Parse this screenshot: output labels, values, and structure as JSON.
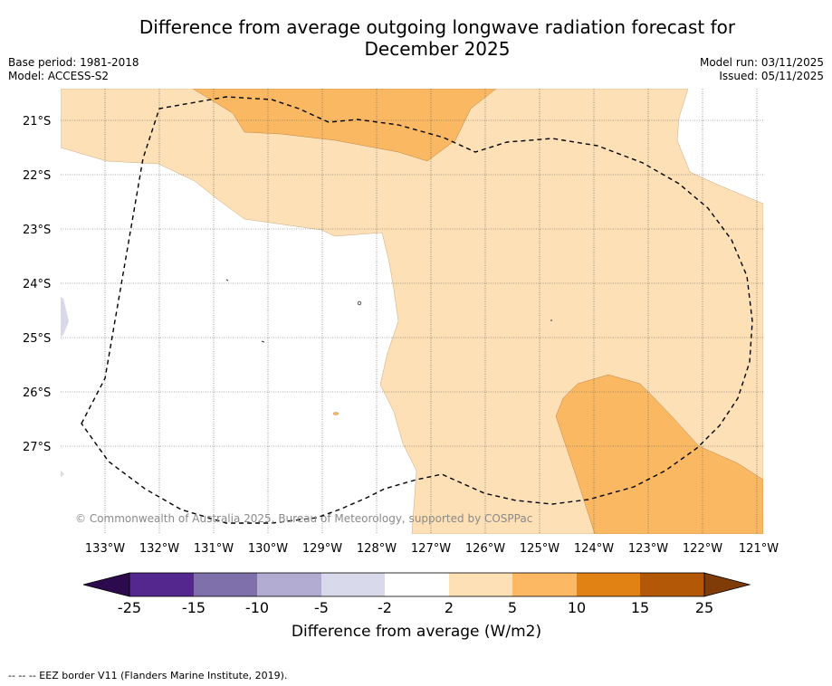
{
  "header": {
    "title_line1": "Difference from average outgoing longwave radiation forecast for",
    "title_line2": "December 2025",
    "base_period": "Base period: 1981-2018",
    "model": "Model: ACCESS-S2",
    "model_run": "Model run: 03/11/2025",
    "issued": "Issued: 05/11/2025"
  },
  "map": {
    "lat_labels": [
      "21°S",
      "22°S",
      "23°S",
      "24°S",
      "25°S",
      "26°S",
      "27°S"
    ],
    "lon_labels": [
      "133°W",
      "132°W",
      "131°W",
      "130°W",
      "129°W",
      "128°W",
      "127°W",
      "126°W",
      "125°W",
      "124°W",
      "123°W",
      "122°W",
      "121°W"
    ],
    "copyright": "© Commonwealth of Australia 2025, Bureau of Meteorology, supported by COSPPac",
    "fill_colors": {
      "light_orange": "#fde0b6",
      "orange": "#fbb863",
      "light_purple": "#d8d8ea"
    }
  },
  "colorbar": {
    "label": "Difference from average (W/m2)",
    "ticks": [
      "-25",
      "-15",
      "-10",
      "-5",
      "-2",
      "2",
      "5",
      "10",
      "15",
      "25"
    ],
    "colors": [
      "#2d0a4e",
      "#54278f",
      "#7f70ab",
      "#b2abd2",
      "#d8daeb",
      "#ffffff",
      "#fee0b6",
      "#fdb863",
      "#e08214",
      "#b35806",
      "#7f3b08"
    ]
  },
  "footer": {
    "legend": "--  --  -- EEZ border V11 (Flanders Marine Institute, 2019)."
  }
}
